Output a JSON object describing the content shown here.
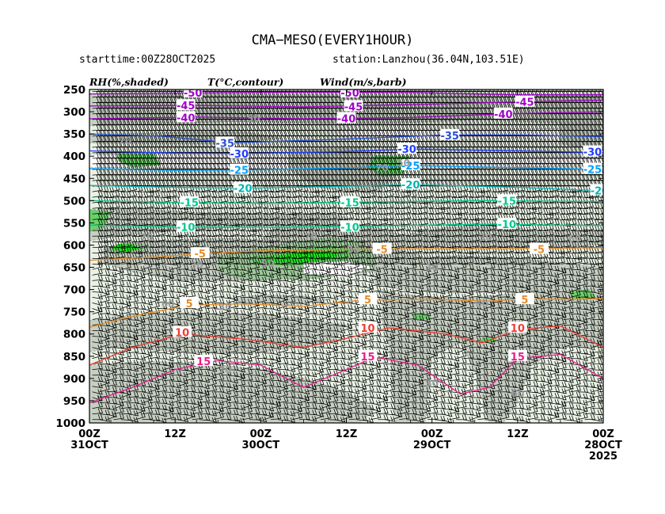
{
  "header": {
    "title": "CMA−MESO(EVERY1HOUR)",
    "starttime": "starttime:00Z28OCT2025",
    "station": "station:Lanzhou(36.04N,103.51E)"
  },
  "legend": {
    "rh": "RH(%,shaded)",
    "temp": "T(°C,contour)",
    "wind": "Wind(m/s,barb)"
  },
  "chart_data": {
    "type": "heatmap",
    "description_type": "time-pressure cross section",
    "y_axis": {
      "ticks": [
        250,
        300,
        350,
        400,
        450,
        500,
        550,
        600,
        650,
        700,
        750,
        800,
        850,
        900,
        950,
        1000
      ],
      "ylim": [
        1000,
        250
      ]
    },
    "x_axis": {
      "hours_from_left": [
        0,
        12,
        24,
        36,
        48,
        60,
        72
      ],
      "tick_top": [
        "00Z",
        "12Z",
        "00Z",
        "12Z",
        "00Z",
        "12Z",
        "00Z"
      ],
      "tick_bottom": [
        "31OCT",
        "",
        "30OCT",
        "",
        "29OCT",
        "",
        "28OCT"
      ],
      "tick_bottom2": [
        "",
        "",
        "",
        "",
        "",
        "",
        "2025"
      ]
    },
    "rh_shading": {
      "levels": [
        30,
        60,
        70,
        80,
        90
      ],
      "colors": [
        "#ffffff",
        "#e9f2e4",
        "#c6cfc2",
        "#9ec99a",
        "#69d168",
        "#19e619"
      ],
      "labels": [
        {
          "t": 5,
          "p": 363,
          "text": "70"
        },
        {
          "t": 23,
          "p": 313,
          "text": "30"
        },
        {
          "t": 41,
          "p": 425,
          "text": "70"
        },
        {
          "t": 44,
          "p": 414,
          "text": "50"
        },
        {
          "t": 8,
          "p": 581,
          "text": "70"
        },
        {
          "t": 31,
          "p": 580,
          "text": "70"
        },
        {
          "t": 37,
          "p": 609,
          "text": "30"
        },
        {
          "t": 55.5,
          "p": 581,
          "text": "30"
        },
        {
          "t": 68,
          "p": 584,
          "text": "60"
        },
        {
          "t": 15,
          "p": 644,
          "text": "30"
        },
        {
          "t": 25,
          "p": 640,
          "text": "90"
        },
        {
          "t": 48,
          "p": 649,
          "text": "30"
        },
        {
          "t": 11,
          "p": 731,
          "text": "60"
        },
        {
          "t": 19,
          "p": 737,
          "text": "30"
        },
        {
          "t": 55,
          "p": 731,
          "text": "60"
        },
        {
          "t": 19,
          "p": 879,
          "text": "70"
        },
        {
          "t": 48,
          "p": 909,
          "text": "30"
        },
        {
          "t": 60,
          "p": 932,
          "text": "60"
        }
      ]
    },
    "temperature_contours": {
      "levels": [
        -50,
        -45,
        -40,
        -35,
        -30,
        -25,
        -20,
        -15,
        -10,
        -5,
        5,
        10,
        15
      ],
      "labels": [
        {
          "t": 14.5,
          "p": 257,
          "text": "-50",
          "color": "#a000c8"
        },
        {
          "t": 36.5,
          "p": 257,
          "text": "-50",
          "color": "#a000c8"
        },
        {
          "t": 13.5,
          "p": 286,
          "text": "-45",
          "color": "#a000c8"
        },
        {
          "t": 37,
          "p": 288,
          "text": "-45",
          "color": "#a000c8"
        },
        {
          "t": 61,
          "p": 278,
          "text": "-45",
          "color": "#a000c8"
        },
        {
          "t": 13.5,
          "p": 313,
          "text": "-40",
          "color": "#a000c8"
        },
        {
          "t": 36,
          "p": 315,
          "text": "-40",
          "color": "#a000c8"
        },
        {
          "t": 58,
          "p": 305,
          "text": "-40",
          "color": "#a000c8"
        },
        {
          "t": 19,
          "p": 370,
          "text": "-35",
          "color": "#2850d2"
        },
        {
          "t": 50.5,
          "p": 353,
          "text": "-35",
          "color": "#2850d2"
        },
        {
          "t": 21,
          "p": 394,
          "text": "-30",
          "color": "#1e3cff"
        },
        {
          "t": 44.5,
          "p": 384,
          "text": "-30",
          "color": "#1e3cff"
        },
        {
          "t": 70.5,
          "p": 390,
          "text": "-30",
          "color": "#1e3cff"
        },
        {
          "t": 21,
          "p": 431,
          "text": "-25",
          "color": "#00a0ff"
        },
        {
          "t": 45,
          "p": 421,
          "text": "-25",
          "color": "#00a0ff"
        },
        {
          "t": 70.5,
          "p": 429,
          "text": "-25",
          "color": "#00a0ff"
        },
        {
          "t": 21.5,
          "p": 472,
          "text": "-20",
          "color": "#00b4b4"
        },
        {
          "t": 45,
          "p": 464,
          "text": "-20",
          "color": "#00b4b4"
        },
        {
          "t": 71.5,
          "p": 477,
          "text": "-20",
          "color": "#00b4b4"
        },
        {
          "t": 14,
          "p": 504,
          "text": "-15",
          "color": "#00c88c"
        },
        {
          "t": 36.5,
          "p": 504,
          "text": "-15",
          "color": "#00c88c"
        },
        {
          "t": 58.5,
          "p": 500,
          "text": "-15",
          "color": "#00c88c"
        },
        {
          "t": 13.5,
          "p": 559,
          "text": "-10",
          "color": "#00c88c"
        },
        {
          "t": 36.5,
          "p": 559,
          "text": "-10",
          "color": "#00c88c"
        },
        {
          "t": 58.5,
          "p": 553,
          "text": "-10",
          "color": "#00c88c"
        },
        {
          "t": 15.5,
          "p": 619,
          "text": "-5",
          "color": "#e68c28"
        },
        {
          "t": 41,
          "p": 609,
          "text": "-5",
          "color": "#e68c28"
        },
        {
          "t": 63,
          "p": 609,
          "text": "-5",
          "color": "#e68c28"
        },
        {
          "t": 14,
          "p": 731,
          "text": "5",
          "color": "#e68c28"
        },
        {
          "t": 39,
          "p": 722,
          "text": "5",
          "color": "#e68c28"
        },
        {
          "t": 61,
          "p": 722,
          "text": "5",
          "color": "#e68c28"
        },
        {
          "t": 13,
          "p": 796,
          "text": "10",
          "color": "#f03c32"
        },
        {
          "t": 39,
          "p": 786,
          "text": "10",
          "color": "#f03c32"
        },
        {
          "t": 60,
          "p": 786,
          "text": "10",
          "color": "#f03c32"
        },
        {
          "t": 16,
          "p": 861,
          "text": "15",
          "color": "#e61e8c"
        },
        {
          "t": 39,
          "p": 850,
          "text": "15",
          "color": "#e61e8c"
        },
        {
          "t": 60,
          "p": 850,
          "text": "15",
          "color": "#e61e8c"
        }
      ]
    }
  }
}
